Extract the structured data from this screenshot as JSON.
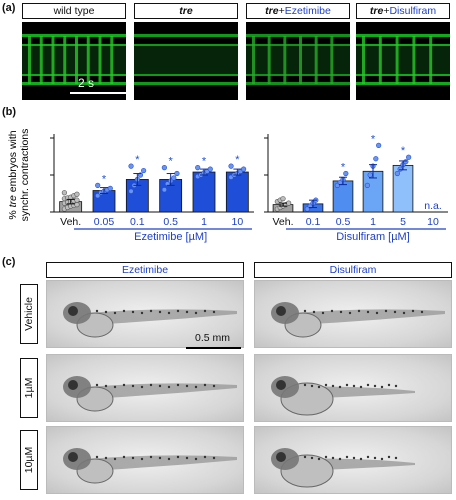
{
  "panels": {
    "a": {
      "letter": "(a)",
      "headers": [
        {
          "parts": [
            {
              "text": "wild type",
              "italic": false,
              "color": "#111111"
            }
          ]
        },
        {
          "parts": [
            {
              "text": "tre",
              "italic": true,
              "color": "#111111"
            }
          ]
        },
        {
          "parts": [
            {
              "text": "tre",
              "italic": true,
              "color": "#111111"
            },
            {
              "text": "+",
              "italic": false,
              "color": "#111111"
            },
            {
              "text": "Ezetimibe",
              "italic": false,
              "color": "#1e40c8"
            }
          ]
        },
        {
          "parts": [
            {
              "text": "tre",
              "italic": true,
              "color": "#111111"
            },
            {
              "text": "+",
              "italic": false,
              "color": "#111111"
            },
            {
              "text": "Disulfiram",
              "italic": false,
              "color": "#1e40c8"
            }
          ]
        }
      ],
      "kymographs": [
        {
          "name": "kymograph-wild-type",
          "stripes": 8,
          "brightness": 1.0
        },
        {
          "name": "kymograph-tre",
          "stripes": 0,
          "brightness": 0.9
        },
        {
          "name": "kymograph-tre-ezetimibe",
          "stripes": 6,
          "brightness": 0.85
        },
        {
          "name": "kymograph-tre-disulfiram",
          "stripes": 5,
          "brightness": 1.0
        }
      ],
      "scale_bar_label": "2 s"
    },
    "b": {
      "letter": "(b)",
      "chart_data": {
        "type": "bar",
        "ylabel_lines": [
          "% tre embryos with",
          "synchr. contractions"
        ],
        "ylabel_italic_word": "tre",
        "ylim": [
          0,
          100
        ],
        "significance_marker": "*",
        "groups": [
          {
            "name": "Ezetimibe [µM]",
            "categories": [
              "Veh.",
              "0.05",
              "0.1",
              "0.5",
              "1",
              "10"
            ],
            "values": [
              14,
              29,
              44,
              44,
              54,
              54
            ],
            "errors": [
              3,
              4,
              8,
              8,
              4,
              4
            ],
            "significant": [
              false,
              true,
              true,
              true,
              true,
              true
            ],
            "colors": [
              "#a0a0a0",
              "#1f4fd8",
              "#1f4fd8",
              "#1f4fd8",
              "#1f4fd8",
              "#1f4fd8"
            ],
            "points": [
              [
                4,
                6,
                8,
                9,
                10,
                12,
                13,
                14,
                15,
                16,
                18,
                19,
                20,
                22,
                24,
                26
              ],
              [
                22,
                26,
                28,
                30,
                32,
                36
              ],
              [
                28,
                36,
                44,
                50,
                56,
                62
              ],
              [
                30,
                38,
                42,
                46,
                52,
                60
              ],
              [
                48,
                50,
                53,
                55,
                58,
                60
              ],
              [
                47,
                50,
                52,
                55,
                58,
                62
              ]
            ]
          },
          {
            "name": "Disulfiram [µM]",
            "categories": [
              "Veh.",
              "0.1",
              "0.5",
              "1",
              "5",
              "10"
            ],
            "values": [
              10,
              11,
              42,
              55,
              63,
              null
            ],
            "errors": [
              2,
              5,
              5,
              9,
              6,
              null
            ],
            "significant": [
              false,
              false,
              true,
              true,
              true,
              false
            ],
            "colors": [
              "#a0a0a0",
              "#3a72e8",
              "#4f8ef0",
              "#6aa6f5",
              "#8fc0fb",
              "#1f4fd8"
            ],
            "points": [
              [
                4,
                6,
                8,
                10,
                12,
                14,
                16,
                18
              ],
              [
                4,
                8,
                12,
                16
              ],
              [
                36,
                40,
                44,
                52
              ],
              [
                36,
                50,
                62,
                72,
                90
              ],
              [
                52,
                58,
                64,
                68,
                74
              ]
            ],
            "missing_label": "n.a."
          }
        ]
      }
    },
    "c": {
      "letter": "(c)",
      "columns": [
        "Ezetimibe",
        "Disulfiram"
      ],
      "rows": [
        "Vehicle",
        "1µM",
        "10µM"
      ],
      "scale_bar_label": "0.5 mm"
    }
  }
}
